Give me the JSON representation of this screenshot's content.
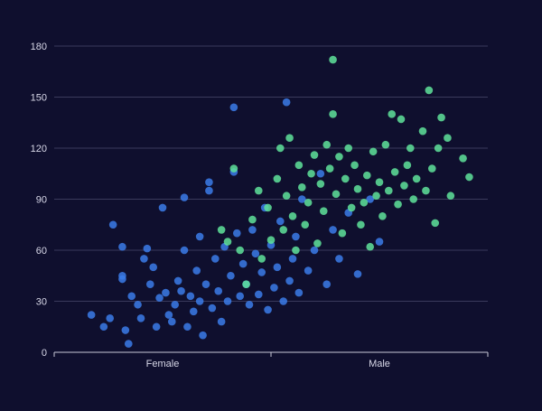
{
  "chart_data": {
    "type": "scatter",
    "title": "",
    "xlabel": "",
    "ylabel": "",
    "x_ticks": [
      "Female",
      "Male"
    ],
    "y_ticks": [
      0,
      30,
      60,
      90,
      120,
      150,
      180
    ],
    "ylim": [
      0,
      180
    ],
    "grid": "horizontal",
    "legend": "none",
    "series_colors": [
      "#3b7be8",
      "#5fe39a"
    ],
    "series": [
      {
        "points": [
          {
            "x": 0.0,
            "y": 22
          },
          {
            "x": 0.04,
            "y": 15
          },
          {
            "x": 0.06,
            "y": 20
          },
          {
            "x": 0.07,
            "y": 75
          },
          {
            "x": 0.1,
            "y": 62
          },
          {
            "x": 0.11,
            "y": 13
          },
          {
            "x": 0.1,
            "y": 45
          },
          {
            "x": 0.1,
            "y": 43
          },
          {
            "x": 0.12,
            "y": 5
          },
          {
            "x": 0.13,
            "y": 33
          },
          {
            "x": 0.15,
            "y": 28
          },
          {
            "x": 0.16,
            "y": 20
          },
          {
            "x": 0.17,
            "y": 55
          },
          {
            "x": 0.18,
            "y": 61
          },
          {
            "x": 0.19,
            "y": 40
          },
          {
            "x": 0.2,
            "y": 50
          },
          {
            "x": 0.21,
            "y": 15
          },
          {
            "x": 0.22,
            "y": 32
          },
          {
            "x": 0.23,
            "y": 85
          },
          {
            "x": 0.24,
            "y": 35
          },
          {
            "x": 0.25,
            "y": 22
          },
          {
            "x": 0.26,
            "y": 18
          },
          {
            "x": 0.27,
            "y": 28
          },
          {
            "x": 0.28,
            "y": 42
          },
          {
            "x": 0.29,
            "y": 36
          },
          {
            "x": 0.3,
            "y": 91
          },
          {
            "x": 0.3,
            "y": 60
          },
          {
            "x": 0.31,
            "y": 15
          },
          {
            "x": 0.32,
            "y": 33
          },
          {
            "x": 0.33,
            "y": 24
          },
          {
            "x": 0.34,
            "y": 48
          },
          {
            "x": 0.35,
            "y": 30
          },
          {
            "x": 0.35,
            "y": 68
          },
          {
            "x": 0.36,
            "y": 10
          },
          {
            "x": 0.37,
            "y": 40
          },
          {
            "x": 0.38,
            "y": 95
          },
          {
            "x": 0.38,
            "y": 100
          },
          {
            "x": 0.39,
            "y": 26
          },
          {
            "x": 0.4,
            "y": 55
          },
          {
            "x": 0.41,
            "y": 36
          },
          {
            "x": 0.42,
            "y": 18
          },
          {
            "x": 0.43,
            "y": 62
          },
          {
            "x": 0.44,
            "y": 30
          },
          {
            "x": 0.45,
            "y": 45
          },
          {
            "x": 0.46,
            "y": 144
          },
          {
            "x": 0.46,
            "y": 106
          },
          {
            "x": 0.47,
            "y": 70
          },
          {
            "x": 0.48,
            "y": 33
          },
          {
            "x": 0.49,
            "y": 52
          },
          {
            "x": 0.5,
            "y": 40
          },
          {
            "x": 0.51,
            "y": 28
          },
          {
            "x": 0.52,
            "y": 72
          },
          {
            "x": 0.53,
            "y": 58
          },
          {
            "x": 0.54,
            "y": 34
          },
          {
            "x": 0.55,
            "y": 47
          },
          {
            "x": 0.56,
            "y": 85
          },
          {
            "x": 0.57,
            "y": 25
          },
          {
            "x": 0.58,
            "y": 63
          },
          {
            "x": 0.59,
            "y": 38
          },
          {
            "x": 0.6,
            "y": 50
          },
          {
            "x": 0.61,
            "y": 77
          },
          {
            "x": 0.62,
            "y": 30
          },
          {
            "x": 0.63,
            "y": 147
          },
          {
            "x": 0.64,
            "y": 42
          },
          {
            "x": 0.65,
            "y": 55
          },
          {
            "x": 0.66,
            "y": 68
          },
          {
            "x": 0.67,
            "y": 35
          },
          {
            "x": 0.68,
            "y": 90
          },
          {
            "x": 0.7,
            "y": 48
          },
          {
            "x": 0.72,
            "y": 60
          },
          {
            "x": 0.74,
            "y": 105
          },
          {
            "x": 0.76,
            "y": 40
          },
          {
            "x": 0.78,
            "y": 72
          },
          {
            "x": 0.8,
            "y": 55
          },
          {
            "x": 0.83,
            "y": 82
          },
          {
            "x": 0.86,
            "y": 46
          },
          {
            "x": 0.9,
            "y": 90
          },
          {
            "x": 0.93,
            "y": 65
          }
        ]
      },
      {
        "points": [
          {
            "x": 0.42,
            "y": 72
          },
          {
            "x": 0.44,
            "y": 65
          },
          {
            "x": 0.46,
            "y": 108
          },
          {
            "x": 0.48,
            "y": 60
          },
          {
            "x": 0.5,
            "y": 40
          },
          {
            "x": 0.52,
            "y": 78
          },
          {
            "x": 0.54,
            "y": 95
          },
          {
            "x": 0.55,
            "y": 55
          },
          {
            "x": 0.57,
            "y": 85
          },
          {
            "x": 0.58,
            "y": 66
          },
          {
            "x": 0.6,
            "y": 102
          },
          {
            "x": 0.61,
            "y": 120
          },
          {
            "x": 0.62,
            "y": 72
          },
          {
            "x": 0.63,
            "y": 92
          },
          {
            "x": 0.64,
            "y": 126
          },
          {
            "x": 0.65,
            "y": 80
          },
          {
            "x": 0.66,
            "y": 60
          },
          {
            "x": 0.67,
            "y": 110
          },
          {
            "x": 0.68,
            "y": 97
          },
          {
            "x": 0.69,
            "y": 75
          },
          {
            "x": 0.7,
            "y": 88
          },
          {
            "x": 0.71,
            "y": 105
          },
          {
            "x": 0.72,
            "y": 116
          },
          {
            "x": 0.73,
            "y": 64
          },
          {
            "x": 0.74,
            "y": 99
          },
          {
            "x": 0.75,
            "y": 83
          },
          {
            "x": 0.76,
            "y": 122
          },
          {
            "x": 0.77,
            "y": 108
          },
          {
            "x": 0.78,
            "y": 172
          },
          {
            "x": 0.78,
            "y": 140
          },
          {
            "x": 0.79,
            "y": 93
          },
          {
            "x": 0.8,
            "y": 115
          },
          {
            "x": 0.81,
            "y": 70
          },
          {
            "x": 0.82,
            "y": 102
          },
          {
            "x": 0.83,
            "y": 120
          },
          {
            "x": 0.84,
            "y": 85
          },
          {
            "x": 0.85,
            "y": 110
          },
          {
            "x": 0.86,
            "y": 96
          },
          {
            "x": 0.87,
            "y": 75
          },
          {
            "x": 0.88,
            "y": 88
          },
          {
            "x": 0.89,
            "y": 104
          },
          {
            "x": 0.9,
            "y": 62
          },
          {
            "x": 0.91,
            "y": 118
          },
          {
            "x": 0.92,
            "y": 92
          },
          {
            "x": 0.93,
            "y": 100
          },
          {
            "x": 0.94,
            "y": 80
          },
          {
            "x": 0.95,
            "y": 122
          },
          {
            "x": 0.96,
            "y": 95
          },
          {
            "x": 0.97,
            "y": 140
          },
          {
            "x": 0.98,
            "y": 106
          },
          {
            "x": 0.99,
            "y": 87
          },
          {
            "x": 1.0,
            "y": 137
          },
          {
            "x": 1.01,
            "y": 98
          },
          {
            "x": 1.02,
            "y": 110
          },
          {
            "x": 1.03,
            "y": 120
          },
          {
            "x": 1.04,
            "y": 90
          },
          {
            "x": 1.05,
            "y": 102
          },
          {
            "x": 1.07,
            "y": 130
          },
          {
            "x": 1.08,
            "y": 95
          },
          {
            "x": 1.09,
            "y": 154
          },
          {
            "x": 1.1,
            "y": 108
          },
          {
            "x": 1.11,
            "y": 76
          },
          {
            "x": 1.12,
            "y": 120
          },
          {
            "x": 1.13,
            "y": 138
          },
          {
            "x": 1.15,
            "y": 126
          },
          {
            "x": 1.16,
            "y": 92
          },
          {
            "x": 1.2,
            "y": 114
          },
          {
            "x": 1.22,
            "y": 103
          }
        ]
      }
    ]
  }
}
